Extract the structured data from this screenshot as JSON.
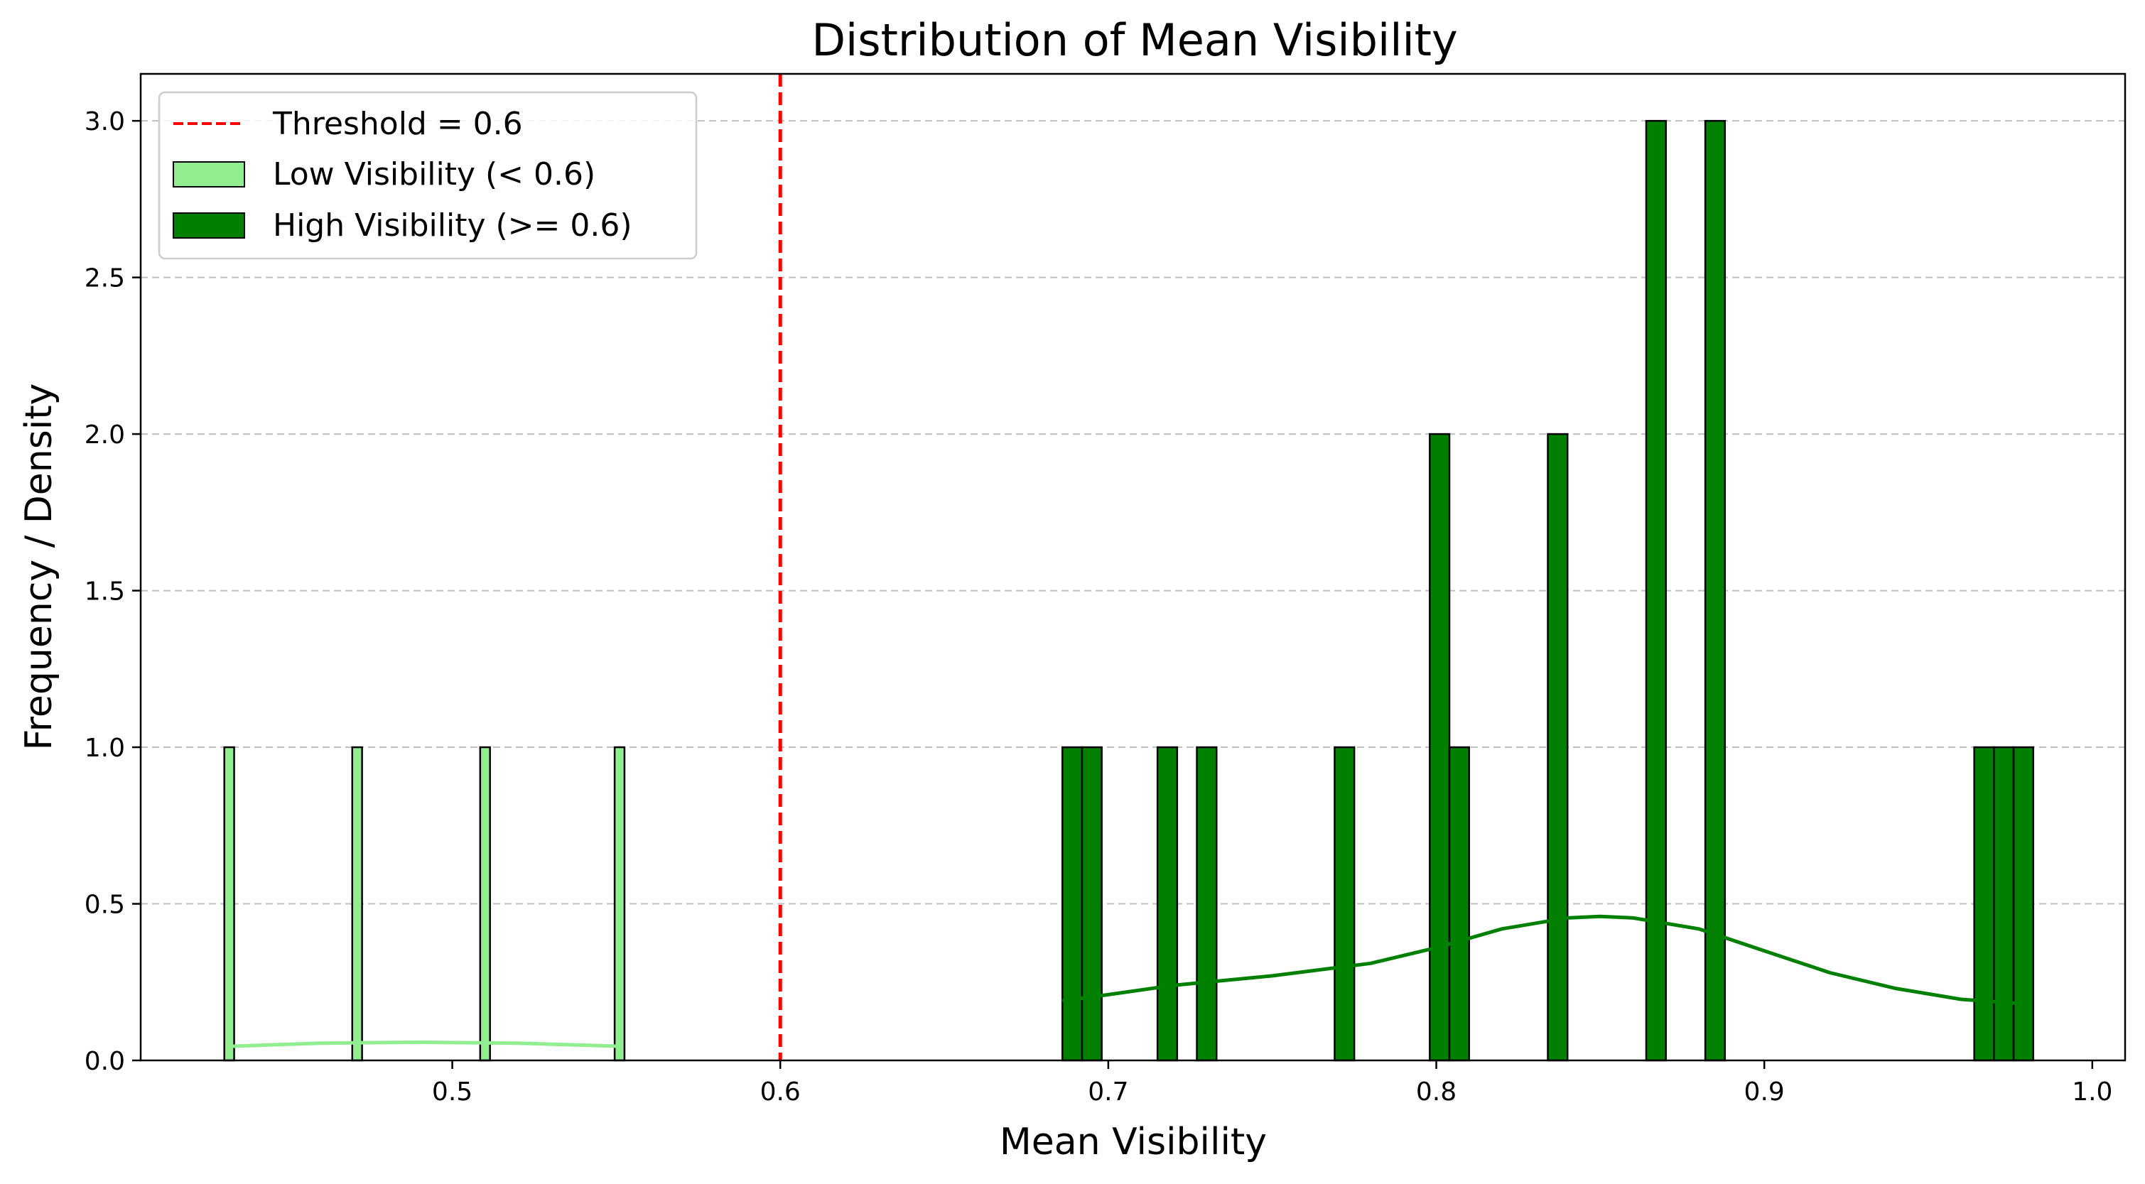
{
  "chart_data": {
    "type": "bar",
    "title": "Distribution of Mean Visibility",
    "xlabel": "Mean Visibility",
    "ylabel": "Frequency / Density",
    "xlim": [
      0.405,
      1.01
    ],
    "ylim": [
      0,
      3.15
    ],
    "xticks": [
      "0.5",
      "0.6",
      "0.7",
      "0.8",
      "0.9",
      "1.0"
    ],
    "xtick_values": [
      0.5,
      0.6,
      0.7,
      0.8,
      0.9,
      1.0
    ],
    "yticks": [
      "0.0",
      "0.5",
      "1.0",
      "1.5",
      "2.0",
      "2.5",
      "3.0"
    ],
    "ytick_values": [
      0.0,
      0.5,
      1.0,
      1.5,
      2.0,
      2.5,
      3.0
    ],
    "grid": "horizontal dashed",
    "legend_position": "top-left",
    "threshold": {
      "label": "Threshold = 0.6",
      "value": 0.6,
      "color": "#ff0000"
    },
    "series": [
      {
        "name": "Low Visibility (< 0.6)",
        "color": "#90ee90",
        "bar_width": 0.003,
        "bins": [
          {
            "x": 0.432,
            "count": 1
          },
          {
            "x": 0.471,
            "count": 1
          },
          {
            "x": 0.51,
            "count": 1
          },
          {
            "x": 0.551,
            "count": 1
          }
        ],
        "kde": [
          [
            0.432,
            0.045
          ],
          [
            0.46,
            0.055
          ],
          [
            0.49,
            0.058
          ],
          [
            0.52,
            0.055
          ],
          [
            0.552,
            0.045
          ]
        ]
      },
      {
        "name": "High Visibility (>= 0.6)",
        "color": "#008000",
        "bar_width": 0.006,
        "bins": [
          {
            "x": 0.689,
            "count": 1
          },
          {
            "x": 0.695,
            "count": 1
          },
          {
            "x": 0.718,
            "count": 1
          },
          {
            "x": 0.73,
            "count": 1
          },
          {
            "x": 0.772,
            "count": 1
          },
          {
            "x": 0.801,
            "count": 2
          },
          {
            "x": 0.807,
            "count": 1
          },
          {
            "x": 0.837,
            "count": 2
          },
          {
            "x": 0.867,
            "count": 3
          },
          {
            "x": 0.885,
            "count": 3
          },
          {
            "x": 0.967,
            "count": 1
          },
          {
            "x": 0.973,
            "count": 1
          },
          {
            "x": 0.979,
            "count": 1
          }
        ],
        "kde": [
          [
            0.686,
            0.19
          ],
          [
            0.7,
            0.21
          ],
          [
            0.72,
            0.24
          ],
          [
            0.75,
            0.27
          ],
          [
            0.78,
            0.31
          ],
          [
            0.8,
            0.36
          ],
          [
            0.82,
            0.42
          ],
          [
            0.84,
            0.455
          ],
          [
            0.85,
            0.46
          ],
          [
            0.86,
            0.455
          ],
          [
            0.88,
            0.42
          ],
          [
            0.9,
            0.35
          ],
          [
            0.92,
            0.28
          ],
          [
            0.94,
            0.23
          ],
          [
            0.96,
            0.195
          ],
          [
            0.98,
            0.18
          ]
        ]
      }
    ]
  }
}
